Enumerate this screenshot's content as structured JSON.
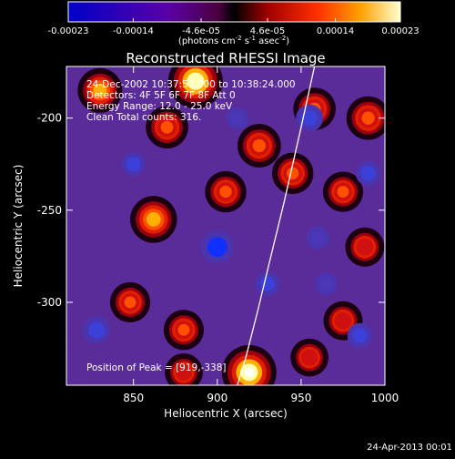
{
  "chart_data": {
    "type": "heatmap",
    "title": "Reconstructed RHESSI Image",
    "xlabel": "Heliocentric X (arcsec)",
    "ylabel": "Heliocentric Y (arcsec)",
    "xlim": [
      810,
      1000
    ],
    "ylim": [
      -345,
      -172
    ],
    "x_ticks": [
      850,
      900,
      950,
      1000
    ],
    "y_ticks": [
      -200,
      -250,
      -300
    ],
    "colorbar": {
      "ticks": [
        "-0.00023",
        "-0.00014",
        "-4.6e-05",
        "4.6e-05",
        "0.00014",
        "0.00023"
      ],
      "range": [
        -0.00023,
        0.00023
      ],
      "units_prefix": "(photons cm",
      "units_exp1": "-2",
      "units_mid": " s",
      "units_exp2": "-1",
      "units_mid2": " asec",
      "units_exp3": "-2",
      "units_suffix": ")"
    },
    "annotations": [
      "24-Dec-2002 10:37:52.000 to 10:38:24.000",
      "Detectors: 4F 5F 6F 7F 8F    Att 0",
      "Energy Range: 12.0 - 25.0 keV",
      "Clean    Total counts: 316."
    ],
    "peak_label": "Position of Peak = [919,-338]",
    "peak": [
      919,
      -338
    ],
    "limb_curve": [
      [
        958,
        -172
      ],
      [
        950,
        -205
      ],
      [
        940,
        -245
      ],
      [
        932,
        -275
      ],
      [
        924,
        -305
      ],
      [
        917,
        -330
      ],
      [
        912,
        -345
      ]
    ],
    "hot_spots": [
      {
        "x": 887,
        "y": -180,
        "v": 0.00023
      },
      {
        "x": 919,
        "y": -338,
        "v": 0.00023
      },
      {
        "x": 830,
        "y": -185,
        "v": 0.00014
      },
      {
        "x": 870,
        "y": -205,
        "v": 0.00012
      },
      {
        "x": 925,
        "y": -215,
        "v": 0.00013
      },
      {
        "x": 958,
        "y": -195,
        "v": 0.00012
      },
      {
        "x": 990,
        "y": -200,
        "v": 0.00013
      },
      {
        "x": 975,
        "y": -240,
        "v": 0.0001
      },
      {
        "x": 862,
        "y": -255,
        "v": 0.00016
      },
      {
        "x": 905,
        "y": -240,
        "v": 0.00011
      },
      {
        "x": 945,
        "y": -230,
        "v": 0.00011
      },
      {
        "x": 988,
        "y": -270,
        "v": 9e-05
      },
      {
        "x": 848,
        "y": -300,
        "v": 0.0001
      },
      {
        "x": 880,
        "y": -315,
        "v": 0.0001
      },
      {
        "x": 975,
        "y": -310,
        "v": 9e-05
      },
      {
        "x": 955,
        "y": -330,
        "v": 8e-05
      },
      {
        "x": 880,
        "y": -338,
        "v": 8e-05
      }
    ],
    "cold_spots": [
      {
        "x": 900,
        "y": -270,
        "v": -0.00023
      },
      {
        "x": 955,
        "y": -200,
        "v": -0.00016
      },
      {
        "x": 990,
        "y": -230,
        "v": -0.00013
      },
      {
        "x": 828,
        "y": -315,
        "v": -0.00016
      },
      {
        "x": 850,
        "y": -225,
        "v": -0.00012
      },
      {
        "x": 930,
        "y": -290,
        "v": -0.00012
      },
      {
        "x": 965,
        "y": -290,
        "v": -0.0001
      },
      {
        "x": 985,
        "y": -318,
        "v": -0.00013
      },
      {
        "x": 912,
        "y": -200,
        "v": -0.0001
      },
      {
        "x": 960,
        "y": -265,
        "v": -0.0001
      }
    ]
  },
  "footer": {
    "date_stamp": "24-Apr-2013 00:01"
  }
}
